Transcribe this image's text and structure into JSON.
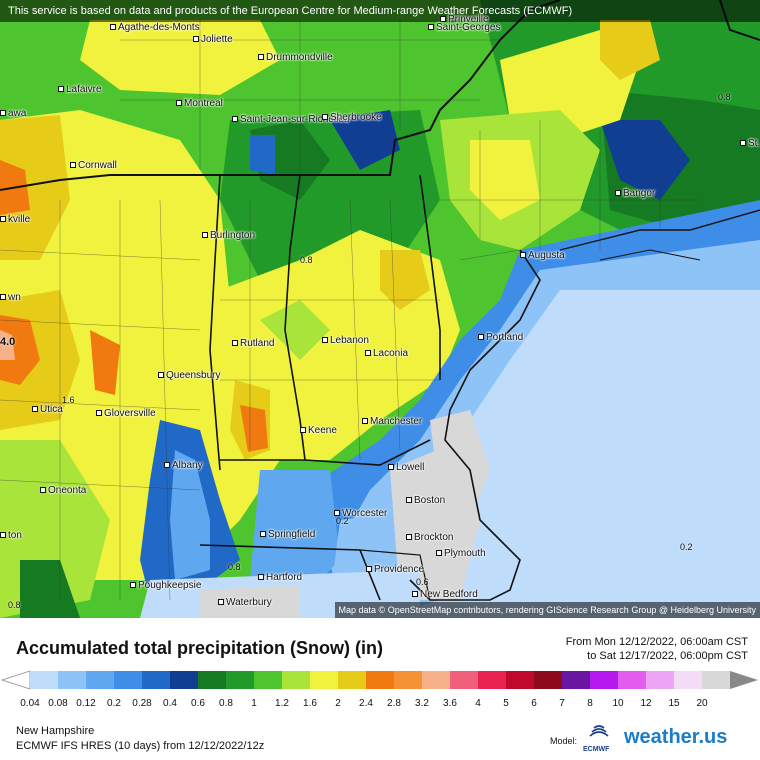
{
  "banner": "This service is based on data and products of the European Centre for Medium-range Weather Forecasts (ECMWF)",
  "attribution": "Map data © OpenStreetMap contributors, rendering GIScience Research Group @ Heidelberg University",
  "cities": [
    {
      "name": "Prinveille"
    },
    {
      "name": "Saint-Georges"
    },
    {
      "name": "Agathe-des-Monts"
    },
    {
      "name": "Joliette"
    },
    {
      "name": "Drummondville"
    },
    {
      "name": "Lafaivre"
    },
    {
      "name": "Montreal"
    },
    {
      "name": "Saint-Jean-sur-Richelieu"
    },
    {
      "name": "Sherbrooke"
    },
    {
      "name": "awa"
    },
    {
      "name": "Cornwall"
    },
    {
      "name": "kville"
    },
    {
      "name": "Bangor"
    },
    {
      "name": "Burlington"
    },
    {
      "name": "Augusta"
    },
    {
      "name": "Rutland"
    },
    {
      "name": "Lebanon"
    },
    {
      "name": "Laconia"
    },
    {
      "name": "Portland"
    },
    {
      "name": "Queensbury"
    },
    {
      "name": "Utica"
    },
    {
      "name": "Gloversville"
    },
    {
      "name": "Keene"
    },
    {
      "name": "Manchester"
    },
    {
      "name": "Albany"
    },
    {
      "name": "Lowell"
    },
    {
      "name": "Oneonta"
    },
    {
      "name": "Boston"
    },
    {
      "name": "Worcester"
    },
    {
      "name": "Springfield"
    },
    {
      "name": "Brockton"
    },
    {
      "name": "Plymouth"
    },
    {
      "name": "Poughkeepsie"
    },
    {
      "name": "Hartford"
    },
    {
      "name": "Providence"
    },
    {
      "name": "New Bedford"
    },
    {
      "name": "Waterbury"
    },
    {
      "name": "St."
    },
    {
      "name": "wn"
    },
    {
      "name": "ton"
    }
  ],
  "map_values": [
    "0.8",
    "0.8",
    "1.6",
    "0.8",
    "0.2",
    "0.2",
    "0.6",
    "0.8",
    "4.0"
  ],
  "legend": {
    "title": "Accumulated total precipitation (Snow) (in)",
    "from": "From Mon 12/12/2022, 06:00am CST",
    "to": "to Sat 12/17/2022, 06:00pm CST",
    "ticks": [
      "0.04",
      "0.08",
      "0.12",
      "0.2",
      "0.28",
      "0.4",
      "0.6",
      "0.8",
      "1",
      "1.2",
      "1.6",
      "2",
      "2.4",
      "2.8",
      "3.2",
      "3.6",
      "4",
      "5",
      "6",
      "7",
      "8",
      "10",
      "12",
      "15",
      "20"
    ],
    "colors": [
      "#bfdcfb",
      "#8ec3f7",
      "#5fa8f0",
      "#3e8de6",
      "#2169c6",
      "#103e92",
      "#167a22",
      "#219a2a",
      "#4ec42e",
      "#a9e43a",
      "#f1f23d",
      "#e6cc19",
      "#f07a10",
      "#f59236",
      "#f6b08a",
      "#f0607a",
      "#ea2250",
      "#c0082a",
      "#8c0a1a",
      "#6a16a0",
      "#b618f0",
      "#e25cf0",
      "#eea4f4",
      "#f4dcf6",
      "#d8d8d8"
    ]
  },
  "region": "New Hampshire",
  "model_line": "ECMWF IFS HRES (10 days) from 12/12/2022/12z",
  "model_label": "Model:",
  "ecmwf_logo_text": "ECMWF",
  "brand": "weather.us"
}
